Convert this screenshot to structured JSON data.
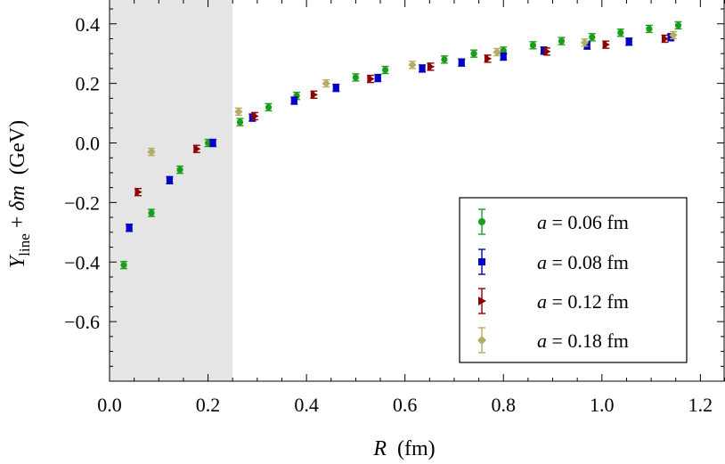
{
  "chart_data": {
    "type": "scatter",
    "title": "",
    "xlabel": "R",
    "xlabel_unit": "(fm)",
    "ylabel": {
      "main": "Y",
      "subscript": "line",
      "plus": " + ",
      "delta": "δm",
      "unit": "(GeV)"
    },
    "xlim": [
      0.0,
      1.25
    ],
    "ylim": [
      -0.8,
      0.48
    ],
    "xticks": [
      0.0,
      0.2,
      0.4,
      0.6,
      0.8,
      1.0,
      1.2
    ],
    "xtick_labels": [
      "0.0",
      "0.2",
      "0.4",
      "0.6",
      "0.8",
      "1.0",
      "1.2"
    ],
    "yticks": [
      0.4,
      0.2,
      0.0,
      -0.2,
      -0.4,
      -0.6
    ],
    "ytick_labels": [
      "0.4",
      "0.2",
      "0.0",
      "−0.2",
      "−0.4",
      "−0.6"
    ],
    "shaded_region": {
      "x_from": 0.0,
      "x_to": 0.25,
      "color": "#e5e5e5"
    },
    "legend_position": "bottom-right",
    "series": [
      {
        "name_prefix": "a",
        "name_value": " = 0.06 fm",
        "marker": "circle",
        "color": "#1a9e1a",
        "points": [
          [
            0.029,
            -0.41
          ],
          [
            0.085,
            -0.235
          ],
          [
            0.143,
            -0.09
          ],
          [
            0.2,
            0.0
          ],
          [
            0.265,
            0.07
          ],
          [
            0.323,
            0.12
          ],
          [
            0.38,
            0.158
          ],
          [
            0.5,
            0.22
          ],
          [
            0.56,
            0.245
          ],
          [
            0.68,
            0.28
          ],
          [
            0.74,
            0.3
          ],
          [
            0.8,
            0.31
          ],
          [
            0.86,
            0.328
          ],
          [
            0.918,
            0.342
          ],
          [
            0.98,
            0.355
          ],
          [
            1.038,
            0.37
          ],
          [
            1.096,
            0.383
          ],
          [
            1.155,
            0.395
          ]
        ]
      },
      {
        "name_prefix": "a",
        "name_value": " = 0.08 fm",
        "marker": "square",
        "color": "#0000c8",
        "points": [
          [
            0.04,
            -0.285
          ],
          [
            0.122,
            -0.125
          ],
          [
            0.21,
            0.0
          ],
          [
            0.29,
            0.085
          ],
          [
            0.375,
            0.142
          ],
          [
            0.46,
            0.185
          ],
          [
            0.545,
            0.218
          ],
          [
            0.635,
            0.25
          ],
          [
            0.715,
            0.27
          ],
          [
            0.8,
            0.29
          ],
          [
            0.882,
            0.31
          ],
          [
            0.97,
            0.327
          ],
          [
            1.055,
            0.34
          ],
          [
            1.14,
            0.355
          ]
        ]
      },
      {
        "name_prefix": "a",
        "name_value": " = 0.12 fm",
        "marker": "triangle-right",
        "color": "#8b0000",
        "points": [
          [
            0.058,
            -0.165
          ],
          [
            0.177,
            -0.02
          ],
          [
            0.295,
            0.09
          ],
          [
            0.415,
            0.162
          ],
          [
            0.53,
            0.215
          ],
          [
            0.652,
            0.256
          ],
          [
            0.768,
            0.283
          ],
          [
            0.888,
            0.307
          ],
          [
            1.008,
            0.33
          ],
          [
            1.128,
            0.35
          ]
        ]
      },
      {
        "name_prefix": "a",
        "name_value": " = 0.18 fm",
        "marker": "diamond",
        "color": "#b3ad66",
        "points": [
          [
            0.085,
            -0.03
          ],
          [
            0.262,
            0.105
          ],
          [
            0.44,
            0.2
          ],
          [
            0.615,
            0.262
          ],
          [
            0.787,
            0.305
          ],
          [
            0.965,
            0.337
          ],
          [
            1.145,
            0.362
          ]
        ]
      }
    ]
  }
}
